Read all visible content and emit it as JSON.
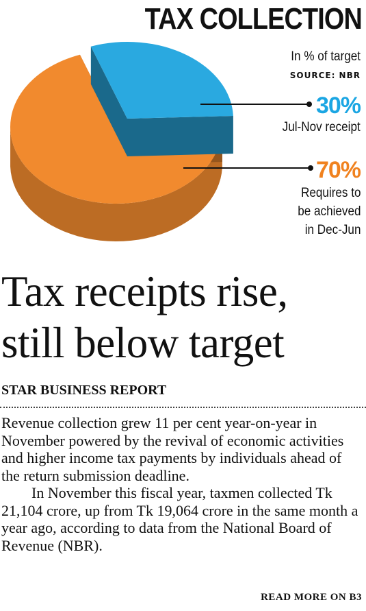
{
  "chart_data": {
    "type": "pie",
    "title": "TAX COLLECTION",
    "subtitle": "In % of target",
    "source": "SOURCE: NBR",
    "slices": [
      {
        "value": 30,
        "label": "30%",
        "description": "Jul-Nov receipt",
        "color": "#2aa9e0"
      },
      {
        "value": 70,
        "label": "70%",
        "description": "Requires to\nbe achieved\nin Dec-Jun",
        "color": "#f18a2e"
      }
    ],
    "colors": {
      "accent_blue": "#1ba6e3",
      "accent_orange": "#f0821f"
    }
  },
  "article": {
    "headline": "Tax receipts rise,\nstill below target",
    "byline": "STAR BUSINESS REPORT",
    "paragraphs": [
      "Revenue collection grew 11 per cent year-on-year in November powered by the revival of economic activities and higher income tax payments by individuals ahead of the return submission deadline.",
      "In November this fiscal year, taxmen collected Tk 21,104 crore, up from Tk 19,064 crore in the same month a year ago, according to data from the National Board of Revenue (NBR)."
    ],
    "read_more": "READ MORE ON B3"
  }
}
